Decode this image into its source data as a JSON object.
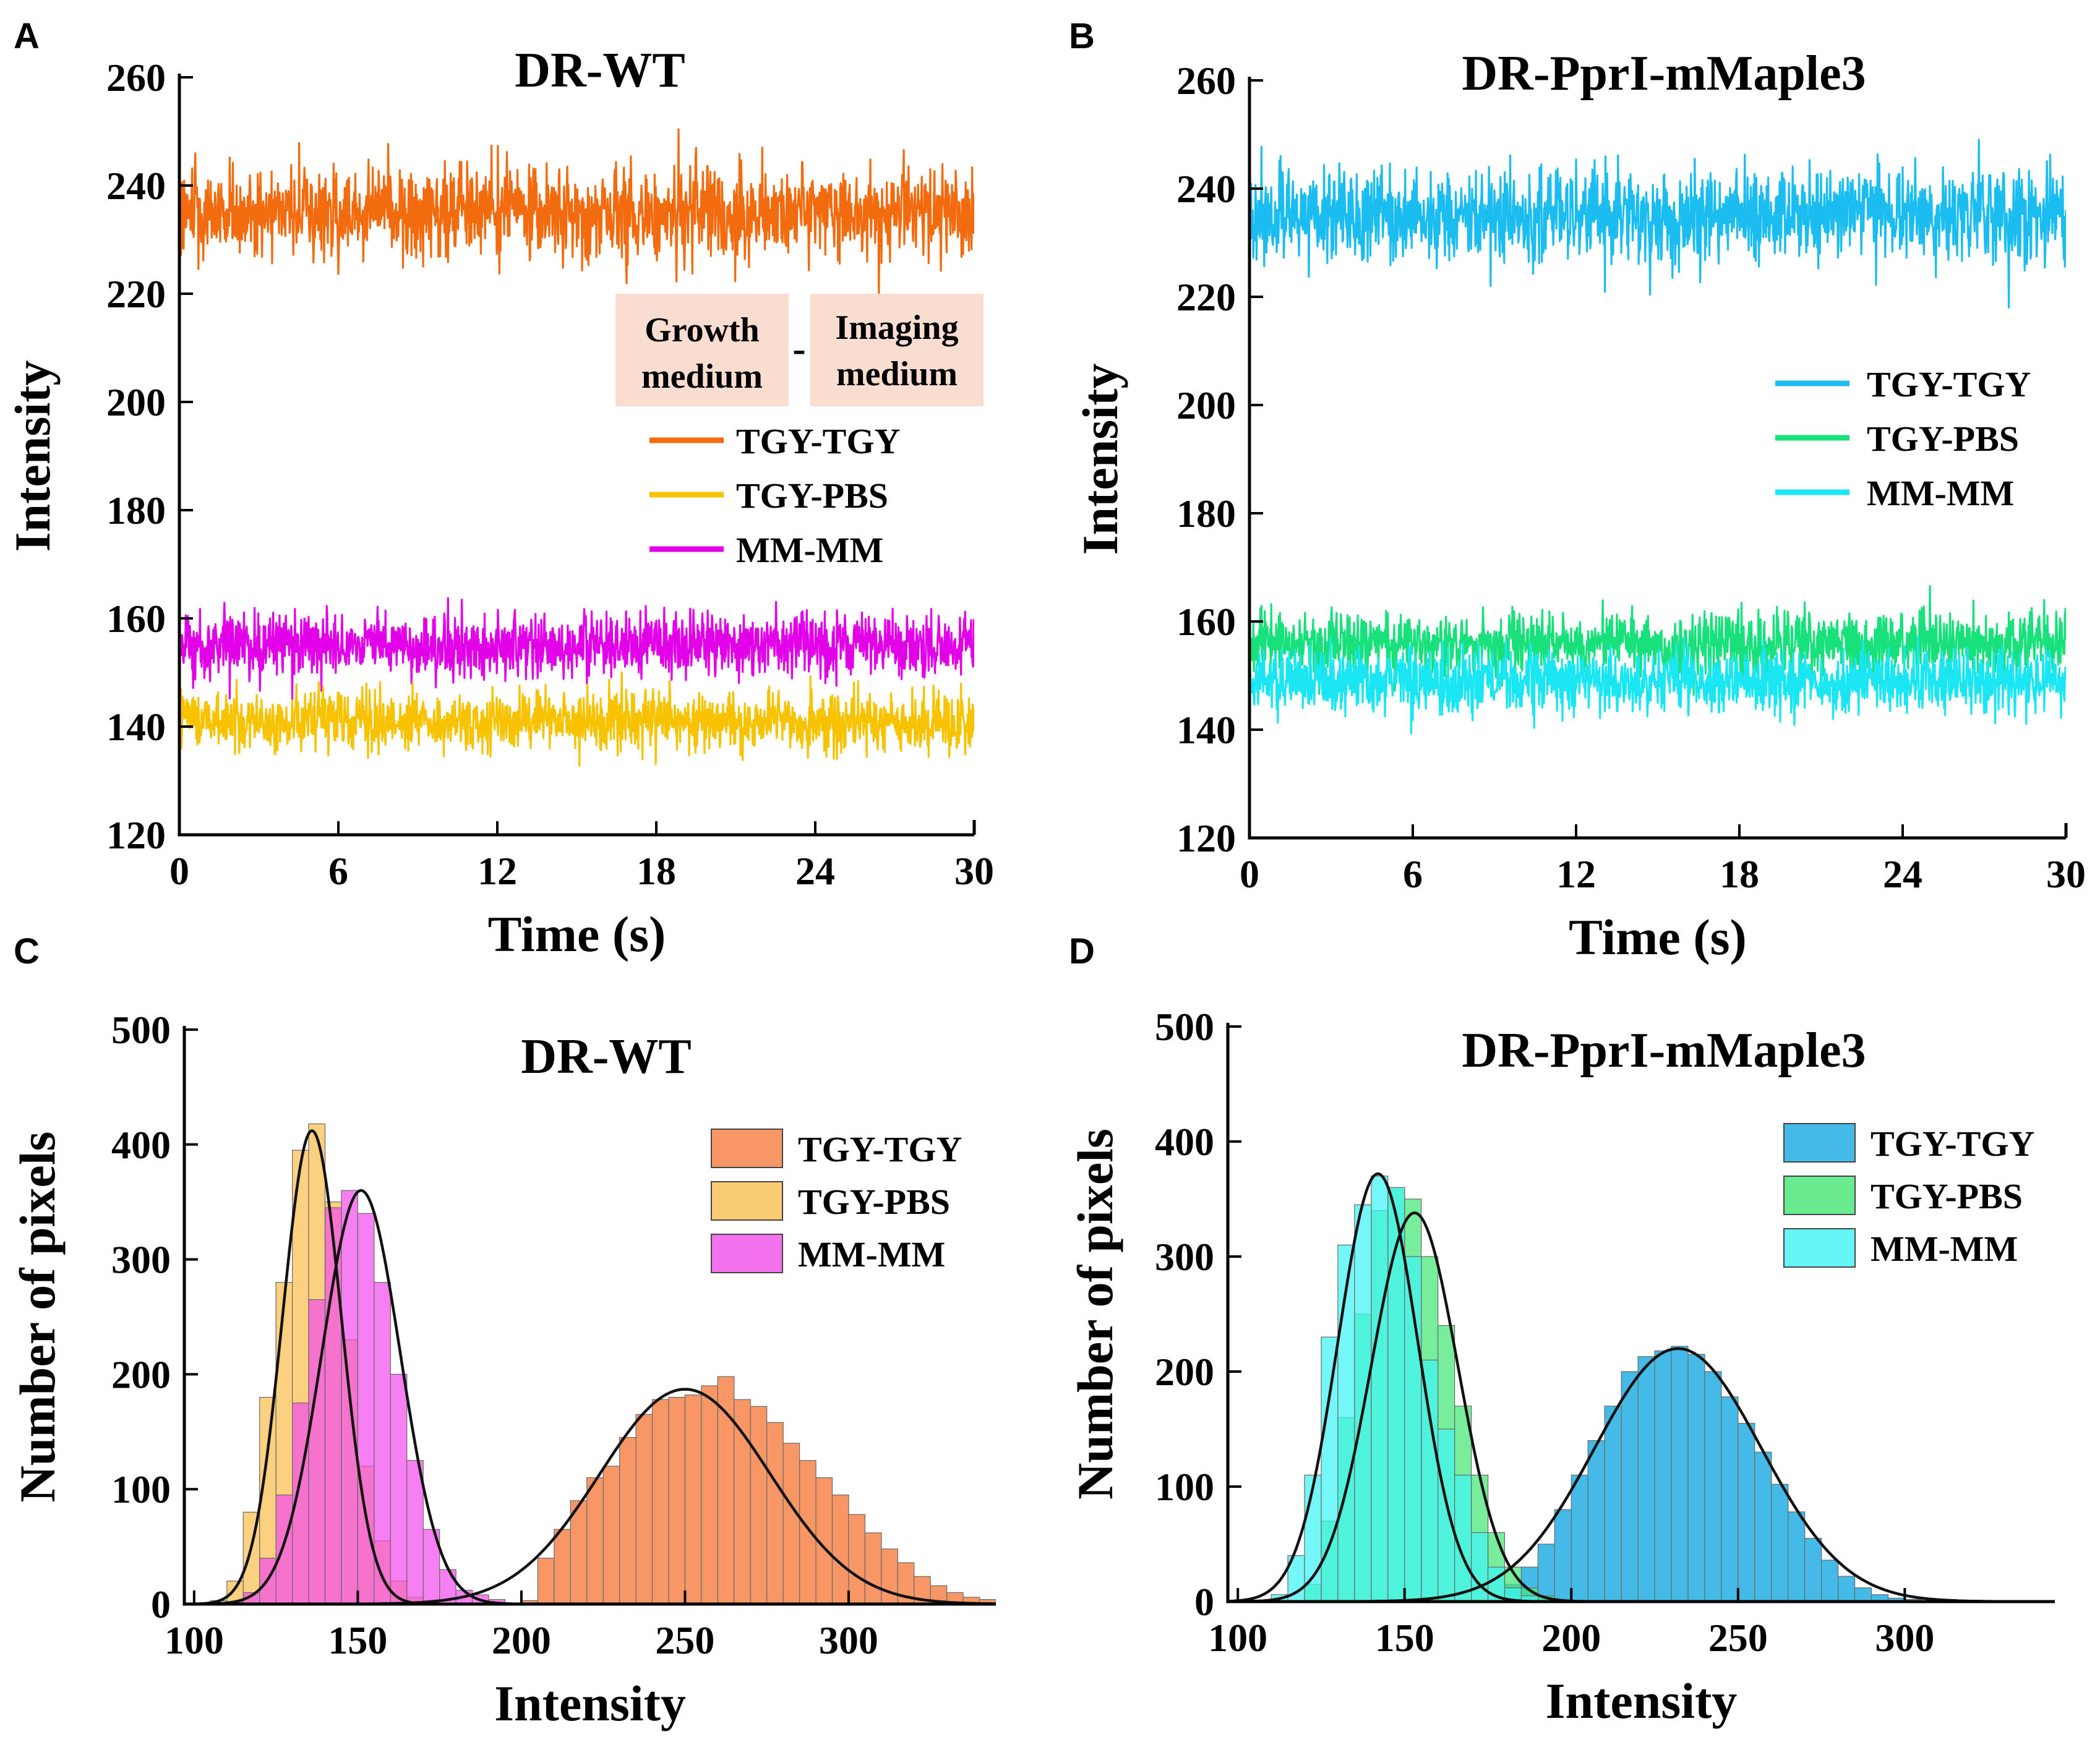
{
  "figure": {
    "panel_labels": [
      "A",
      "B",
      "C",
      "D"
    ]
  },
  "chart_data": [
    {
      "panel": "A",
      "type": "line",
      "title": "DR-WT",
      "xlabel": "Time (s)",
      "ylabel": "Intensity",
      "xlim": [
        0,
        30
      ],
      "ylim": [
        120,
        260
      ],
      "xticks": [
        0,
        6,
        12,
        18,
        24,
        30
      ],
      "yticks": [
        120,
        140,
        160,
        180,
        200,
        220,
        240,
        260
      ],
      "legend_header": [
        "Growth medium",
        "Imaging medium"
      ],
      "legend_header_sep": "-",
      "legend_header_color": "#F8DDD0",
      "series": [
        {
          "name": "TGY-TGY",
          "color": "#F26B0F",
          "mean": 235,
          "noise": 4.2,
          "min": 217,
          "max": 253
        },
        {
          "name": "TGY-PBS",
          "color": "#F7C300",
          "mean": 141,
          "noise": 2.8,
          "min": 132,
          "max": 150
        },
        {
          "name": "MM-MM",
          "color": "#E100E8",
          "mean": 155,
          "noise": 2.9,
          "min": 143,
          "max": 167
        }
      ],
      "draw_order": [
        0,
        2,
        1
      ]
    },
    {
      "panel": "B",
      "type": "line",
      "title": "DR-PprI-mMaple3",
      "xlabel": "Time (s)",
      "ylabel": "Intensity",
      "xlim": [
        0,
        30
      ],
      "ylim": [
        120,
        260
      ],
      "xticks": [
        0,
        6,
        12,
        18,
        24,
        30
      ],
      "yticks": [
        120,
        140,
        160,
        180,
        200,
        220,
        240,
        260
      ],
      "series": [
        {
          "name": "TGY-TGY",
          "color": "#1BBDF0",
          "mean": 235,
          "noise": 4.3,
          "min": 214,
          "max": 257
        },
        {
          "name": "TGY-PBS",
          "color": "#18E07A",
          "mean": 156,
          "noise": 2.9,
          "min": 144,
          "max": 167
        },
        {
          "name": "MM-MM",
          "color": "#19E6F2",
          "mean": 149,
          "noise": 2.9,
          "min": 137,
          "max": 160
        }
      ],
      "draw_order": [
        0,
        1,
        2
      ]
    },
    {
      "panel": "C",
      "type": "bar",
      "subtype": "histogram",
      "title": "DR-WT",
      "xlabel": "Intensity",
      "ylabel": "Number of pixels",
      "xlim": [
        97,
        345
      ],
      "ylim": [
        0,
        500
      ],
      "xticks": [
        100,
        150,
        200,
        250,
        300
      ],
      "yticks": [
        0,
        100,
        200,
        300,
        400,
        500
      ],
      "bin_width": 5,
      "series": [
        {
          "name": "TGY-TGY",
          "color": "#F47A3A",
          "bin_start": 200,
          "counts": [
            3,
            40,
            65,
            90,
            110,
            120,
            145,
            165,
            178,
            180,
            182,
            190,
            198,
            178,
            172,
            158,
            140,
            125,
            110,
            95,
            78,
            62,
            48,
            36,
            24,
            16,
            10,
            6,
            4,
            2
          ],
          "fit": {
            "mu": 250,
            "sigma": 26,
            "peak": 187
          }
        },
        {
          "name": "TGY-PBS",
          "color": "#F8B42E",
          "bin_start": 105,
          "counts": [
            3,
            20,
            80,
            180,
            280,
            395,
            418,
            350,
            230,
            120,
            55,
            20,
            6,
            2
          ],
          "fit": {
            "mu": 136,
            "sigma": 9,
            "peak": 412
          }
        },
        {
          "name": "MM-MM",
          "color": "#F030E8",
          "bin_start": 110,
          "counts": [
            2,
            10,
            40,
            95,
            175,
            265,
            345,
            360,
            340,
            280,
            200,
            125,
            65,
            30,
            12,
            8,
            4
          ],
          "fit": {
            "mu": 151,
            "sigma": 12,
            "peak": 360
          }
        }
      ]
    },
    {
      "panel": "D",
      "type": "bar",
      "subtype": "histogram",
      "title": "DR-PprI-mMaple3",
      "xlabel": "Intensity",
      "ylabel": "Number of pixels",
      "xlim": [
        97,
        345
      ],
      "ylim": [
        0,
        500
      ],
      "xticks": [
        100,
        150,
        200,
        250,
        300
      ],
      "yticks": [
        0,
        100,
        200,
        300,
        400,
        500
      ],
      "bin_width": 5,
      "series": [
        {
          "name": "TGY-TGY",
          "color": "#0FA8DF",
          "bin_start": 180,
          "counts": [
            15,
            30,
            50,
            80,
            110,
            140,
            170,
            200,
            213,
            218,
            222,
            215,
            200,
            178,
            155,
            130,
            102,
            78,
            55,
            36,
            22,
            12,
            6,
            3,
            2
          ],
          "fit": {
            "mu": 232,
            "sigma": 25,
            "peak": 220
          }
        },
        {
          "name": "TGY-PBS",
          "color": "#22E35C",
          "bin_start": 120,
          "counts": [
            15,
            70,
            160,
            250,
            340,
            360,
            350,
            300,
            240,
            170,
            110,
            60,
            30,
            12,
            5
          ],
          "fit": {
            "mu": 153,
            "sigma": 13,
            "peak": 338
          }
        },
        {
          "name": "MM-MM",
          "color": "#1EF2F2",
          "bin_start": 110,
          "counts": [
            6,
            40,
            110,
            230,
            310,
            345,
            370,
            360,
            300,
            210,
            150,
            110,
            60,
            30,
            12,
            5
          ],
          "fit": {
            "mu": 142,
            "sigma": 12,
            "peak": 372
          }
        }
      ]
    }
  ]
}
